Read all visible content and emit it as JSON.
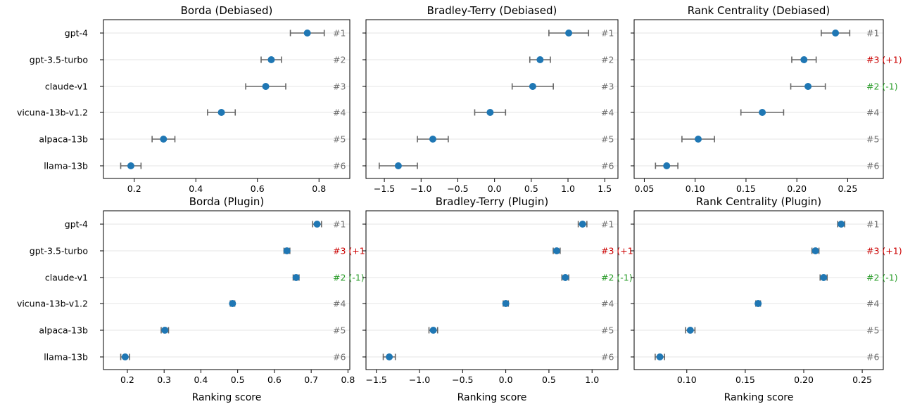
{
  "colors": {
    "point": "#1f77b4",
    "errorbar": "#666666",
    "rank_same": "#6f6f6f",
    "rank_up": "#cc0000",
    "rank_down": "#2a9d2a"
  },
  "chart_data": [
    {
      "type": "scatter",
      "title": "Borda (Debiased)",
      "xlabel": "",
      "categories": [
        "gpt-4",
        "gpt-3.5-turbo",
        "claude-v1",
        "vicuna-13b-v1.2",
        "alpaca-13b",
        "llama-13b"
      ],
      "values": [
        0.762,
        0.645,
        0.627,
        0.483,
        0.295,
        0.189
      ],
      "err": [
        0.055,
        0.033,
        0.065,
        0.045,
        0.037,
        0.033
      ],
      "rank_labels": [
        "#1",
        "#2",
        "#3",
        "#4",
        "#5",
        "#6"
      ],
      "rank_change": [
        "same",
        "same",
        "same",
        "same",
        "same",
        "same"
      ],
      "xlim": [
        0.1,
        0.9
      ],
      "xticks": [
        0.2,
        0.4,
        0.6,
        0.8
      ],
      "xtick_labels": [
        "0.2",
        "0.4",
        "0.6",
        "0.8"
      ],
      "grid": "horizontal"
    },
    {
      "type": "scatter",
      "title": "Bradley-Terry (Debiased)",
      "xlabel": "",
      "categories": [
        "gpt-4",
        "gpt-3.5-turbo",
        "claude-v1",
        "vicuna-13b-v1.2",
        "alpaca-13b",
        "llama-13b"
      ],
      "values": [
        1.01,
        0.62,
        0.52,
        -0.06,
        -0.84,
        -1.31
      ],
      "err": [
        0.27,
        0.14,
        0.28,
        0.21,
        0.21,
        0.26
      ],
      "rank_labels": [
        "#1",
        "#2",
        "#3",
        "#4",
        "#5",
        "#6"
      ],
      "rank_change": [
        "same",
        "same",
        "same",
        "same",
        "same",
        "same"
      ],
      "xlim": [
        -1.75,
        1.68
      ],
      "xticks": [
        -1.5,
        -1.0,
        -0.5,
        0.0,
        0.5,
        1.0,
        1.5
      ],
      "xtick_labels": [
        "−1.5",
        "−1.0",
        "−0.5",
        "0.0",
        "0.5",
        "1.0",
        "1.5"
      ],
      "grid": "horizontal"
    },
    {
      "type": "scatter",
      "title": "Rank Centrality (Debiased)",
      "xlabel": "",
      "categories": [
        "gpt-4",
        "gpt-3.5-turbo",
        "claude-v1",
        "vicuna-13b-v1.2",
        "alpaca-13b",
        "llama-13b"
      ],
      "values": [
        0.238,
        0.207,
        0.211,
        0.166,
        0.103,
        0.072
      ],
      "err": [
        0.014,
        0.012,
        0.017,
        0.021,
        0.016,
        0.011
      ],
      "rank_labels": [
        "#1",
        "#3 (+1)",
        "#2 (-1)",
        "#4",
        "#5",
        "#6"
      ],
      "rank_change": [
        "same",
        "up",
        "down",
        "same",
        "same",
        "same"
      ],
      "xlim": [
        0.04,
        0.285
      ],
      "xticks": [
        0.05,
        0.1,
        0.15,
        0.2,
        0.25
      ],
      "xtick_labels": [
        "0.05",
        "0.10",
        "0.15",
        "0.20",
        "0.25"
      ],
      "grid": "horizontal"
    },
    {
      "type": "scatter",
      "title": "Borda (Plugin)",
      "xlabel": "Ranking score",
      "categories": [
        "gpt-4",
        "gpt-3.5-turbo",
        "claude-v1",
        "vicuna-13b-v1.2",
        "alpaca-13b",
        "llama-13b"
      ],
      "values": [
        0.716,
        0.634,
        0.659,
        0.486,
        0.302,
        0.194
      ],
      "err": [
        0.012,
        0.008,
        0.008,
        0.006,
        0.01,
        0.012
      ],
      "rank_labels": [
        "#1",
        "#3 (+1",
        "#2 (-1)",
        "#4",
        "#5",
        "#6"
      ],
      "rank_change": [
        "same",
        "up",
        "down",
        "same",
        "same",
        "same"
      ],
      "xlim": [
        0.135,
        0.805
      ],
      "xticks": [
        0.2,
        0.3,
        0.4,
        0.5,
        0.6,
        0.7,
        0.8
      ],
      "xtick_labels": [
        "0.2",
        "0.3",
        "0.4",
        "0.5",
        "0.6",
        "0.7",
        "0.8"
      ],
      "grid": "horizontal"
    },
    {
      "type": "scatter",
      "title": "Bradley-Terry (Plugin)",
      "xlabel": "Ranking score",
      "categories": [
        "gpt-4",
        "gpt-3.5-turbo",
        "claude-v1",
        "vicuna-13b-v1.2",
        "alpaca-13b",
        "llama-13b"
      ],
      "values": [
        0.89,
        0.59,
        0.69,
        0.0,
        -0.84,
        -1.35
      ],
      "err": [
        0.05,
        0.04,
        0.04,
        0.03,
        0.05,
        0.07
      ],
      "rank_labels": [
        "#1",
        "#3 (+1",
        "#2 (-1)",
        "#4",
        "#5",
        "#6"
      ],
      "rank_change": [
        "same",
        "up",
        "down",
        "same",
        "same",
        "same"
      ],
      "xlim": [
        -1.62,
        1.3
      ],
      "xticks": [
        -1.5,
        -1.0,
        -0.5,
        0.0,
        0.5,
        1.0
      ],
      "xtick_labels": [
        "−1.5",
        "−1.0",
        "−0.5",
        "0.0",
        "0.5",
        "1.0"
      ],
      "grid": "horizontal"
    },
    {
      "type": "scatter",
      "title": "Rank Centrality (Plugin)",
      "xlabel": "Ranking score",
      "categories": [
        "gpt-4",
        "gpt-3.5-turbo",
        "claude-v1",
        "vicuna-13b-v1.2",
        "alpaca-13b",
        "llama-13b"
      ],
      "values": [
        0.232,
        0.21,
        0.217,
        0.161,
        0.103,
        0.077
      ],
      "err": [
        0.003,
        0.003,
        0.003,
        0.002,
        0.004,
        0.004
      ],
      "rank_labels": [
        "#1",
        "#3 (+1)",
        "#2 (-1)",
        "#4",
        "#5",
        "#6"
      ],
      "rank_change": [
        "same",
        "up",
        "down",
        "same",
        "same",
        "same"
      ],
      "xlim": [
        0.055,
        0.268
      ],
      "xticks": [
        0.1,
        0.15,
        0.2,
        0.25
      ],
      "xtick_labels": [
        "0.10",
        "0.15",
        "0.20",
        "0.25"
      ],
      "grid": "horizontal"
    }
  ]
}
